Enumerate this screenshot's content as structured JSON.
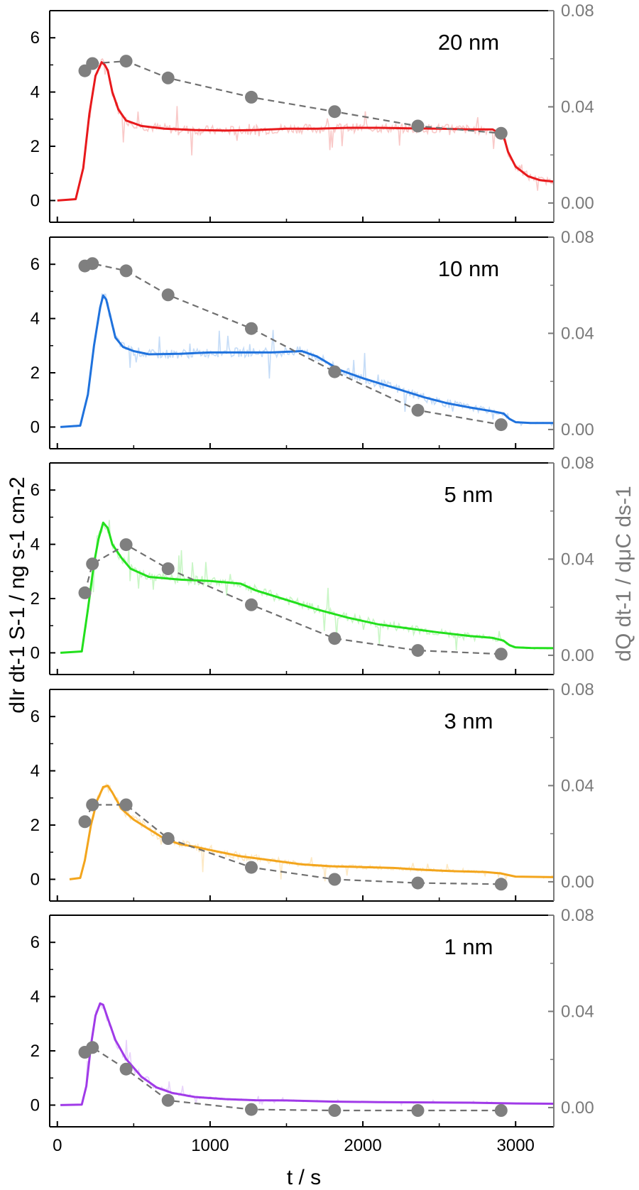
{
  "chart_data": {
    "type": "line",
    "xlabel": "t / s",
    "ylabel_left": "dIr dt-1 S-1 / ng s-1 cm-2",
    "ylabel_right": "dQ dt-1 / dμC ds-1",
    "xlim": [
      -50,
      3250
    ],
    "ylim_left": [
      -0.8,
      7
    ],
    "ylim_right": [
      -0.008,
      0.08
    ],
    "xticks": [
      "0",
      "1000",
      "2000",
      "3000"
    ],
    "yticks_left": [
      "0",
      "2",
      "4",
      "6"
    ],
    "yticks_right": [
      "0.00",
      "0.04",
      "0.08"
    ],
    "colors": {
      "axis_right": "#7a7a7a",
      "markers": "#7f7f7f",
      "dashed": "#707070"
    },
    "panels": [
      {
        "label": "20 nm",
        "color": "#e8191c",
        "noisy_color": "#f9c9c8",
        "line": [
          [
            0,
            0
          ],
          [
            120,
            0.05
          ],
          [
            170,
            1.2
          ],
          [
            210,
            3.2
          ],
          [
            250,
            4.6
          ],
          [
            290,
            5.1
          ],
          [
            310,
            5.0
          ],
          [
            330,
            4.8
          ],
          [
            360,
            4.0
          ],
          [
            400,
            3.35
          ],
          [
            450,
            2.95
          ],
          [
            550,
            2.75
          ],
          [
            700,
            2.65
          ],
          [
            900,
            2.6
          ],
          [
            1100,
            2.58
          ],
          [
            1300,
            2.6
          ],
          [
            1500,
            2.65
          ],
          [
            1700,
            2.65
          ],
          [
            1900,
            2.68
          ],
          [
            2100,
            2.68
          ],
          [
            2300,
            2.66
          ],
          [
            2500,
            2.65
          ],
          [
            2700,
            2.62
          ],
          [
            2850,
            2.62
          ],
          [
            2920,
            2.4
          ],
          [
            2950,
            1.8
          ],
          [
            3000,
            1.25
          ],
          [
            3080,
            0.9
          ],
          [
            3160,
            0.75
          ],
          [
            3250,
            0.7
          ]
        ],
        "points": [
          [
            180,
            0.055
          ],
          [
            230,
            0.058
          ],
          [
            450,
            0.059
          ],
          [
            725,
            0.052
          ],
          [
            1270,
            0.044
          ],
          [
            1815,
            0.038
          ],
          [
            2360,
            0.032
          ],
          [
            2905,
            0.029
          ]
        ]
      },
      {
        "label": "10 nm",
        "color": "#1f72dd",
        "noisy_color": "#c5dcf7",
        "line": [
          [
            20,
            0
          ],
          [
            150,
            0.05
          ],
          [
            200,
            1.2
          ],
          [
            240,
            3.0
          ],
          [
            280,
            4.4
          ],
          [
            300,
            4.85
          ],
          [
            320,
            4.7
          ],
          [
            350,
            4.0
          ],
          [
            380,
            3.3
          ],
          [
            430,
            2.95
          ],
          [
            500,
            2.8
          ],
          [
            600,
            2.68
          ],
          [
            800,
            2.7
          ],
          [
            1000,
            2.75
          ],
          [
            1200,
            2.75
          ],
          [
            1400,
            2.75
          ],
          [
            1600,
            2.8
          ],
          [
            1700,
            2.6
          ],
          [
            1850,
            2.1
          ],
          [
            2000,
            1.8
          ],
          [
            2200,
            1.45
          ],
          [
            2400,
            1.1
          ],
          [
            2550,
            0.88
          ],
          [
            2700,
            0.72
          ],
          [
            2850,
            0.58
          ],
          [
            2920,
            0.5
          ],
          [
            2960,
            0.3
          ],
          [
            3000,
            0.18
          ],
          [
            3100,
            0.15
          ],
          [
            3250,
            0.15
          ]
        ],
        "points": [
          [
            180,
            0.068
          ],
          [
            230,
            0.069
          ],
          [
            450,
            0.066
          ],
          [
            725,
            0.056
          ],
          [
            1270,
            0.042
          ],
          [
            1815,
            0.024
          ],
          [
            2360,
            0.008
          ],
          [
            2905,
            0.002
          ]
        ]
      },
      {
        "label": "5 nm",
        "color": "#22e01c",
        "noisy_color": "#c9f6c6",
        "line": [
          [
            20,
            0
          ],
          [
            160,
            0.05
          ],
          [
            200,
            1.6
          ],
          [
            240,
            3.3
          ],
          [
            270,
            4.2
          ],
          [
            300,
            4.8
          ],
          [
            330,
            4.6
          ],
          [
            360,
            4.0
          ],
          [
            420,
            3.5
          ],
          [
            480,
            3.1
          ],
          [
            600,
            2.8
          ],
          [
            800,
            2.7
          ],
          [
            1000,
            2.65
          ],
          [
            1200,
            2.55
          ],
          [
            1300,
            2.3
          ],
          [
            1500,
            1.95
          ],
          [
            1700,
            1.6
          ],
          [
            1900,
            1.3
          ],
          [
            2100,
            1.05
          ],
          [
            2300,
            0.9
          ],
          [
            2500,
            0.75
          ],
          [
            2700,
            0.62
          ],
          [
            2850,
            0.55
          ],
          [
            2920,
            0.45
          ],
          [
            2960,
            0.28
          ],
          [
            3000,
            0.2
          ],
          [
            3100,
            0.18
          ],
          [
            3250,
            0.17
          ]
        ],
        "points": [
          [
            180,
            0.026
          ],
          [
            230,
            0.038
          ],
          [
            450,
            0.046
          ],
          [
            725,
            0.036
          ],
          [
            1270,
            0.021
          ],
          [
            1815,
            0.007
          ],
          [
            2360,
            0.002
          ],
          [
            2905,
            0.0005
          ]
        ]
      },
      {
        "label": "3 nm",
        "color": "#f3a51c",
        "noisy_color": "#fde9c4",
        "line": [
          [
            80,
            0
          ],
          [
            150,
            0.05
          ],
          [
            180,
            0.7
          ],
          [
            220,
            2.0
          ],
          [
            260,
            2.9
          ],
          [
            300,
            3.4
          ],
          [
            330,
            3.45
          ],
          [
            360,
            3.2
          ],
          [
            420,
            2.6
          ],
          [
            500,
            2.2
          ],
          [
            600,
            1.85
          ],
          [
            700,
            1.5
          ],
          [
            800,
            1.3
          ],
          [
            900,
            1.2
          ],
          [
            1000,
            1.08
          ],
          [
            1200,
            0.85
          ],
          [
            1400,
            0.7
          ],
          [
            1600,
            0.55
          ],
          [
            1800,
            0.48
          ],
          [
            2000,
            0.45
          ],
          [
            2200,
            0.42
          ],
          [
            2400,
            0.35
          ],
          [
            2600,
            0.3
          ],
          [
            2800,
            0.27
          ],
          [
            2900,
            0.22
          ],
          [
            3000,
            0.1
          ],
          [
            3250,
            0.08
          ]
        ],
        "points": [
          [
            180,
            0.025
          ],
          [
            230,
            0.032
          ],
          [
            450,
            0.032
          ],
          [
            725,
            0.018
          ],
          [
            1270,
            0.006
          ],
          [
            1815,
            0.001
          ],
          [
            2360,
            -0.0005
          ],
          [
            2905,
            -0.001
          ]
        ]
      },
      {
        "label": "1 nm",
        "color": "#a03ae8",
        "noisy_color": "#e8d3fa",
        "line": [
          [
            20,
            0
          ],
          [
            160,
            0.02
          ],
          [
            190,
            0.7
          ],
          [
            220,
            2.2
          ],
          [
            250,
            3.3
          ],
          [
            280,
            3.75
          ],
          [
            300,
            3.7
          ],
          [
            330,
            3.2
          ],
          [
            380,
            2.4
          ],
          [
            450,
            1.7
          ],
          [
            550,
            1.05
          ],
          [
            650,
            0.65
          ],
          [
            750,
            0.45
          ],
          [
            900,
            0.3
          ],
          [
            1100,
            0.22
          ],
          [
            1300,
            0.18
          ],
          [
            1500,
            0.17
          ],
          [
            1800,
            0.13
          ],
          [
            2100,
            0.11
          ],
          [
            2400,
            0.1
          ],
          [
            2700,
            0.09
          ],
          [
            3000,
            0.06
          ],
          [
            3250,
            0.05
          ]
        ],
        "points": [
          [
            180,
            0.023
          ],
          [
            230,
            0.025
          ],
          [
            450,
            0.016
          ],
          [
            725,
            0.003
          ],
          [
            1270,
            -0.0008
          ],
          [
            1815,
            -0.0012
          ],
          [
            2360,
            -0.0012
          ],
          [
            2905,
            -0.0012
          ]
        ]
      }
    ]
  }
}
